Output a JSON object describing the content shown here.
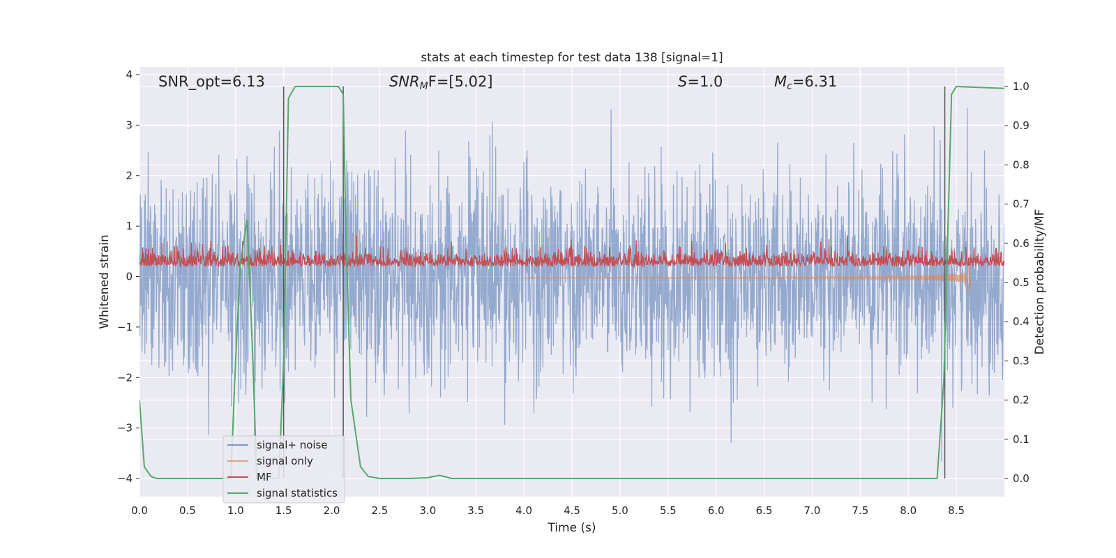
{
  "chart_data": {
    "type": "line",
    "title": "stats at each timestep for test data 138 [signal=1]",
    "xlabel": "Time (s)",
    "ylabel": "Whitened strain",
    "y2label": "Detection probability/MF",
    "xlim": [
      0.0,
      9.0
    ],
    "ylim": [
      -4.4,
      4.2
    ],
    "y2lim": [
      -0.05,
      1.03
    ],
    "xticks": [
      "0.0",
      "0.5",
      "1.0",
      "1.5",
      "2.0",
      "2.5",
      "3.0",
      "3.5",
      "4.0",
      "4.5",
      "5.0",
      "5.5",
      "6.0",
      "6.5",
      "7.0",
      "7.5",
      "8.0",
      "8.5"
    ],
    "yticks": [
      "4",
      "3",
      "2",
      "1",
      "0",
      "−1",
      "−2",
      "−3",
      "−4"
    ],
    "y2ticks": [
      "1.0",
      "0.9",
      "0.8",
      "0.7",
      "0.6",
      "0.5",
      "0.4",
      "0.3",
      "0.2",
      "0.1",
      "0.0"
    ],
    "grid": true,
    "legend_position": "lower-left",
    "annotations": {
      "snr_opt": "SNR_opt=6.13",
      "snr_mf_base": "SNR",
      "snr_mf_sub": "M",
      "snr_mf_rest": "F=[5.02]",
      "s_italic": "S",
      "s_rest": "=1.0",
      "mc_base": "M",
      "mc_sub": "c",
      "mc_rest": "=6.31"
    },
    "vertical_lines_x": [
      1.5,
      2.12,
      8.38
    ],
    "series": [
      {
        "name": "signal+ noise",
        "color": "#4c72b0",
        "axis": "left",
        "description_values": {
          "mean": 0.0,
          "amplitude": 1.0,
          "peaks": [
            3.5,
            -4.0
          ]
        }
      },
      {
        "name": "signal only",
        "color": "#dd8452",
        "axis": "left",
        "chirp_end": 8.65
      },
      {
        "name": "MF",
        "color": "#c44e52",
        "axis": "left",
        "baseline": 0.25
      },
      {
        "name": "signal statistics",
        "color": "#55a868",
        "axis": "right",
        "x": [
          0.0,
          0.05,
          0.12,
          0.18,
          0.3,
          0.95,
          1.0,
          1.05,
          1.12,
          1.18,
          1.22,
          1.35,
          1.45,
          1.5,
          1.55,
          1.62,
          1.7,
          2.0,
          2.07,
          2.12,
          2.15,
          2.2,
          2.3,
          2.38,
          2.5,
          2.8,
          3.0,
          3.12,
          3.25,
          3.4,
          8.3,
          8.37,
          8.45,
          8.5,
          9.0
        ],
        "y": [
          0.2,
          0.03,
          0.005,
          0.0,
          0.0,
          0.0,
          0.3,
          0.55,
          0.66,
          0.3,
          0.0,
          0.0,
          0.0,
          0.3,
          0.97,
          1.0,
          1.0,
          1.0,
          1.0,
          0.98,
          0.6,
          0.2,
          0.03,
          0.005,
          0.0,
          0.0,
          0.002,
          0.008,
          0.0,
          0.0,
          0.0,
          0.25,
          0.98,
          1.0,
          0.995
        ]
      }
    ]
  }
}
